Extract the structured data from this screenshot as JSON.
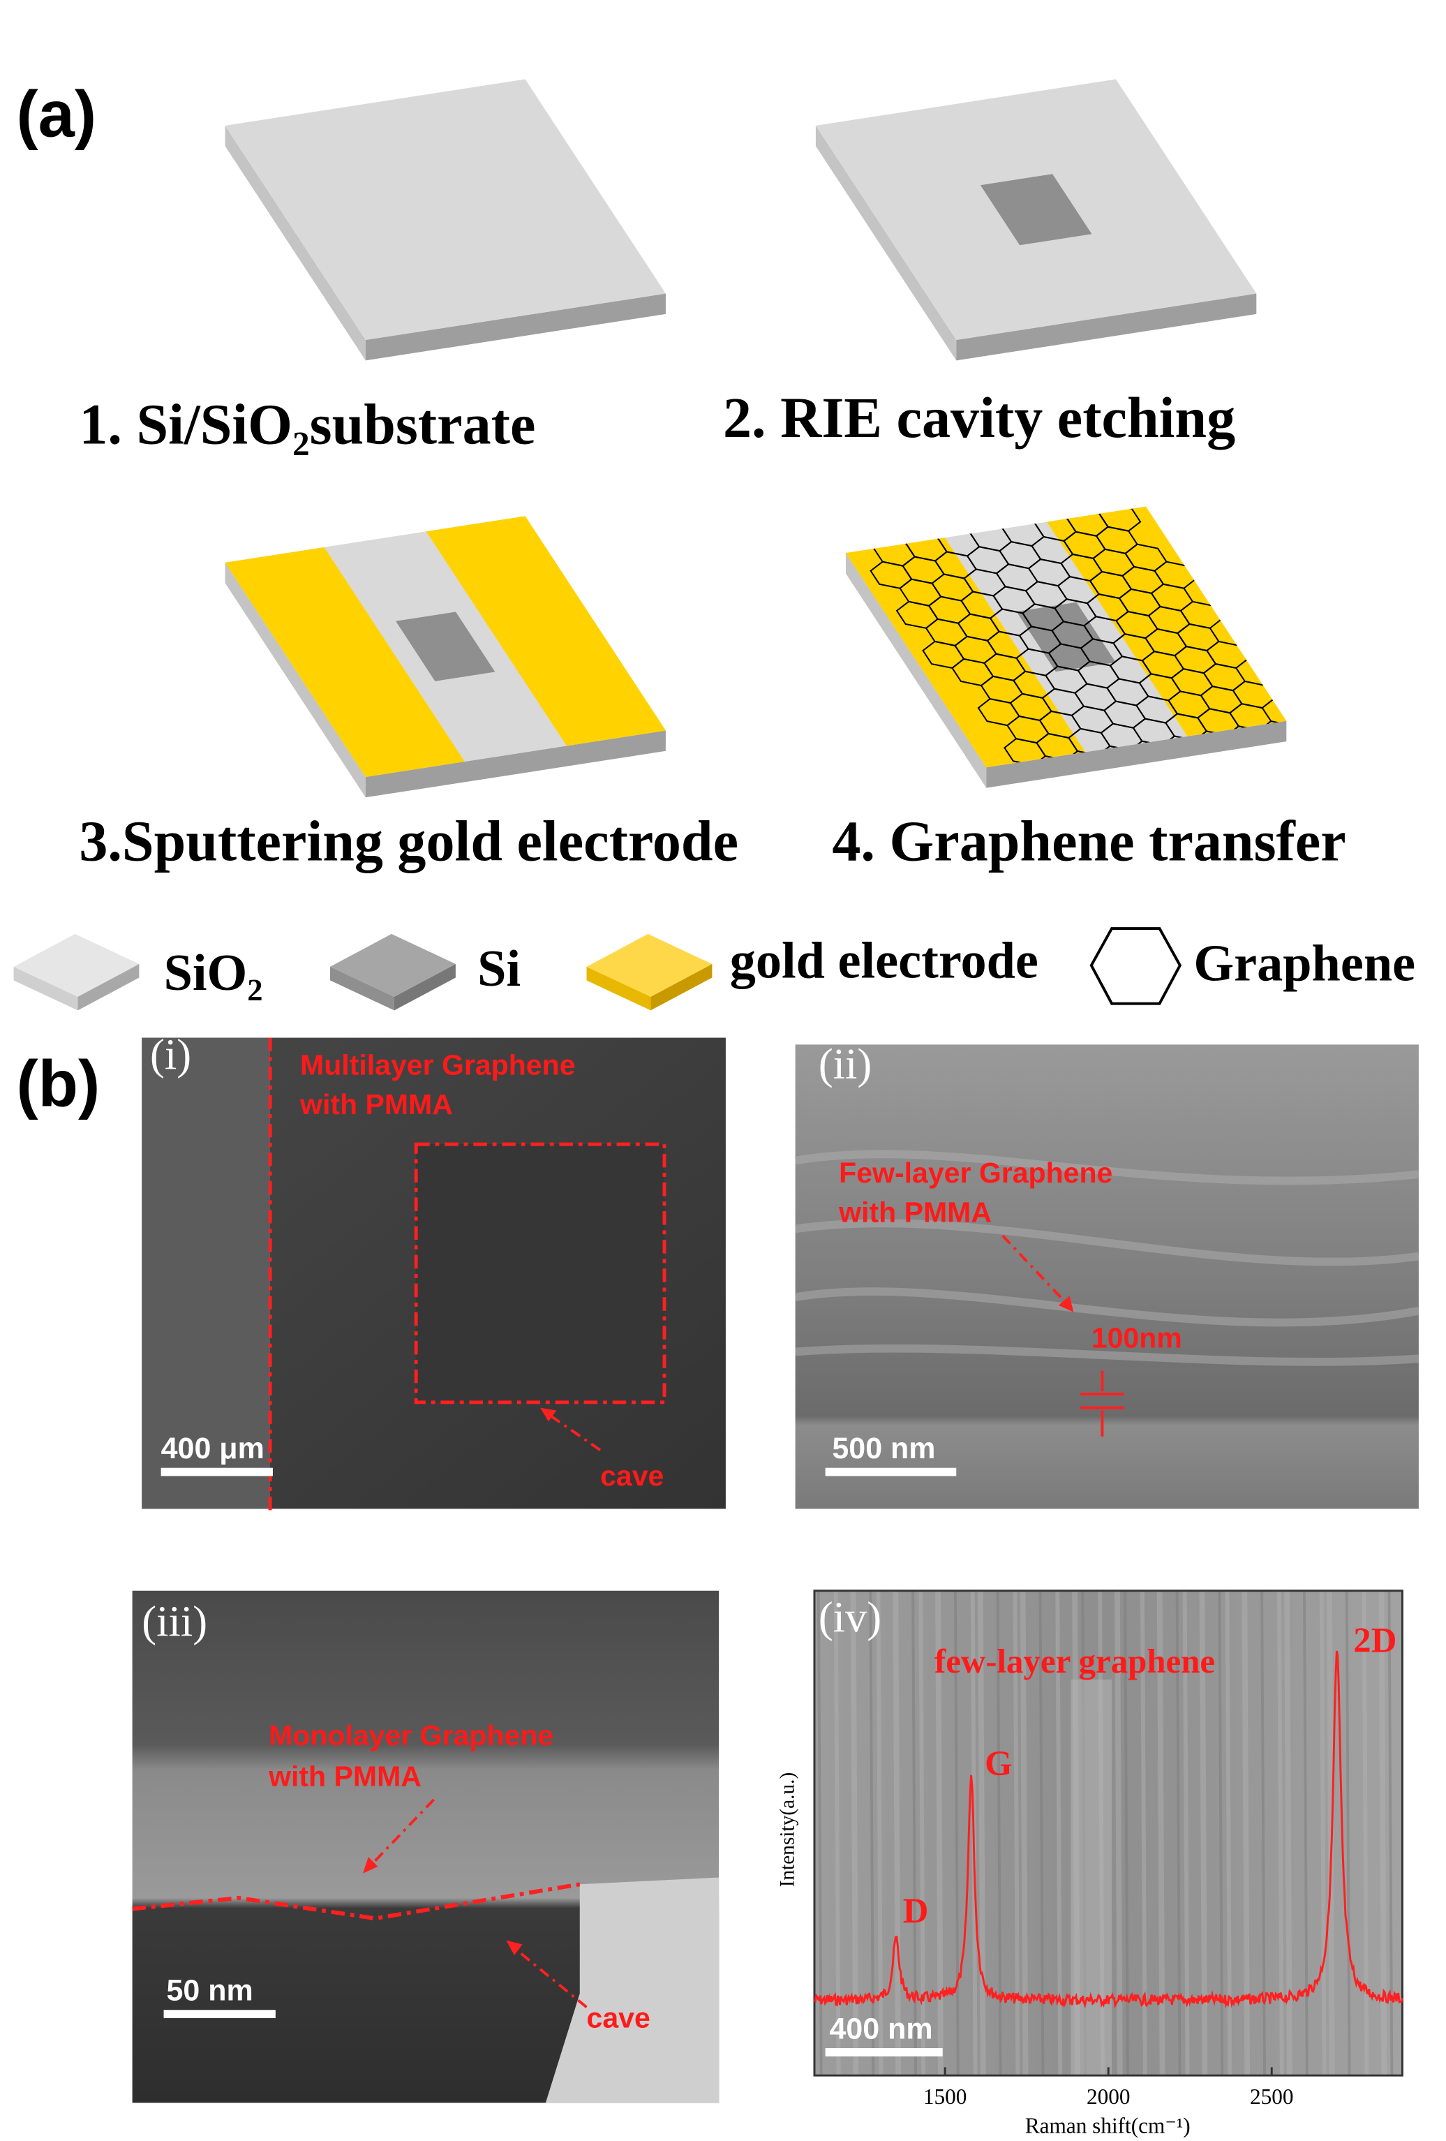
{
  "panel_a": {
    "label": "(a)",
    "steps": [
      "1. Si/SiO₂substrate",
      "2. RIE cavity etching",
      "3.Sputtering gold electrode",
      "4. Graphene transfer"
    ],
    "legend": [
      "SiO₂",
      "Si",
      "gold electrode",
      "Graphene"
    ]
  },
  "panel_b": {
    "label": "(b)",
    "images": [
      {
        "label": "(i)",
        "annotations": [
          "Multilayer Graphene",
          "with PMMA",
          "cave"
        ],
        "scale_bar": "400 μm"
      },
      {
        "label": "(ii)",
        "annotations": [
          "Few-layer Graphene",
          "with PMMA",
          "100nm"
        ],
        "scale_bar": "500 nm"
      },
      {
        "label": "(iii)",
        "annotations": [
          "Monolayer Graphene",
          "with PMMA",
          "cave"
        ],
        "scale_bar": "50 nm"
      },
      {
        "label": "(iv)",
        "annotations": [
          "few-layer graphene"
        ],
        "scale_bar": "400 nm"
      }
    ]
  },
  "raman": {
    "xlabel": "Raman shift(cm⁻¹)",
    "ylabel": "Intensity(a.u.)",
    "xlim": [
      1100,
      2900
    ],
    "xticks": [
      1500,
      2000,
      2500
    ],
    "peaks": [
      {
        "label": "D",
        "x": 1350
      },
      {
        "label": "G",
        "x": 1580
      },
      {
        "label": "2D",
        "x": 2700
      }
    ]
  }
}
